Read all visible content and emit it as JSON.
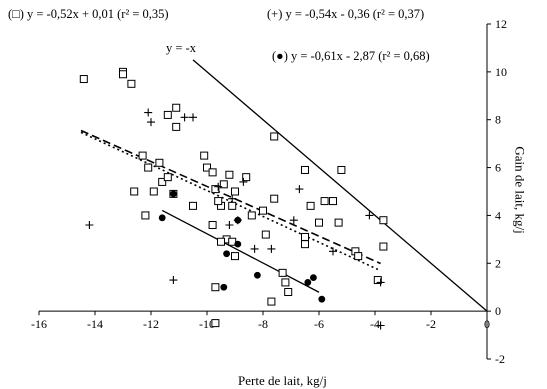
{
  "chart_data": {
    "type": "scatter",
    "xlabel": "Perte de lait, kg/j",
    "ylabel": "Gain de lait, kg/j",
    "xlim": [
      -16,
      0
    ],
    "ylim": [
      -2,
      12
    ],
    "x_ticks": [
      "-16",
      "-14",
      "-12",
      "-10",
      "-8",
      "-6",
      "-4",
      "-2",
      "0"
    ],
    "y_ticks": [
      "-2",
      "0",
      "2",
      "4",
      "6",
      "8",
      "10",
      "12"
    ],
    "y_axis_position": "right",
    "grid": false,
    "annotations": {
      "squares_eq": "(□) y = -0,52x + 0,01 (r² = 0,35)",
      "plus_eq": "(+) y = -0,54x - 0,36 (r² = 0,37)",
      "dots_eq": "(●) y = -0,61x - 2,87 (r² = 0,68)",
      "identity": "y = -x"
    },
    "series": [
      {
        "marker": "open-square",
        "points": [
          [
            -14.4,
            9.7
          ],
          [
            -13,
            10
          ],
          [
            -13,
            9.9
          ],
          [
            -12.7,
            9.5
          ],
          [
            -11.4,
            8.2
          ],
          [
            -11.1,
            8.5
          ],
          [
            -11.1,
            7.7
          ],
          [
            -12.6,
            5.0
          ],
          [
            -12.3,
            6.5
          ],
          [
            -12.1,
            6.0
          ],
          [
            -12.2,
            4.0
          ],
          [
            -11.9,
            5.0
          ],
          [
            -11.7,
            6.2
          ],
          [
            -11.6,
            5.4
          ],
          [
            -11.4,
            5.6
          ],
          [
            -11.2,
            4.9
          ],
          [
            -10.5,
            4.4
          ],
          [
            -10.1,
            6.5
          ],
          [
            -10.0,
            6.0
          ],
          [
            -9.8,
            5.8
          ],
          [
            -9.7,
            5.1
          ],
          [
            -9.5,
            4.4
          ],
          [
            -9.6,
            4.6
          ],
          [
            -9.4,
            5.3
          ],
          [
            -9.2,
            5.7
          ],
          [
            -9.1,
            4.4
          ],
          [
            -9.0,
            5.0
          ],
          [
            -8.6,
            5.6
          ],
          [
            -8.4,
            4.0
          ],
          [
            -8.0,
            4.2
          ],
          [
            -7.9,
            3.2
          ],
          [
            -7.6,
            4.7
          ],
          [
            -7.6,
            7.3
          ],
          [
            -6.5,
            5.9
          ],
          [
            -6.3,
            4.4
          ],
          [
            -6.0,
            3.7
          ],
          [
            -5.8,
            4.6
          ],
          [
            -5.5,
            4.6
          ],
          [
            -5.3,
            3.7
          ],
          [
            -5.2,
            5.9
          ],
          [
            -9.3,
            3.0
          ],
          [
            -9.5,
            2.9
          ],
          [
            -9.1,
            2.9
          ],
          [
            -9.0,
            2.3
          ],
          [
            -9.8,
            3.6
          ],
          [
            -7.3,
            1.6
          ],
          [
            -7.2,
            1.2
          ],
          [
            -7.1,
            0.8
          ],
          [
            -7.7,
            0.4
          ],
          [
            -6.5,
            3.1
          ],
          [
            -6.5,
            2.8
          ],
          [
            -4.7,
            2.5
          ],
          [
            -4.6,
            2.3
          ],
          [
            -3.9,
            1.3
          ],
          [
            -3.7,
            3.8
          ],
          [
            -3.7,
            2.7
          ],
          [
            -9.7,
            1.0
          ],
          [
            -9.7,
            -0.5
          ]
        ]
      },
      {
        "marker": "plus",
        "points": [
          [
            -14.2,
            3.6
          ],
          [
            -12.1,
            8.3
          ],
          [
            -12.0,
            7.9
          ],
          [
            -10.8,
            8.1
          ],
          [
            -10.5,
            8.1
          ],
          [
            -11.2,
            1.3
          ],
          [
            -9.6,
            5.2
          ],
          [
            -9.2,
            3.6
          ],
          [
            -9.1,
            4.7
          ],
          [
            -8.7,
            5.4
          ],
          [
            -8.9,
            3.8
          ],
          [
            -8.3,
            2.6
          ],
          [
            -7.7,
            2.6
          ],
          [
            -6.9,
            3.8
          ],
          [
            -6.7,
            5.1
          ],
          [
            -5.5,
            2.5
          ],
          [
            -4.2,
            4.0
          ],
          [
            -3.8,
            1.2
          ],
          [
            -3.8,
            -0.6
          ]
        ]
      },
      {
        "marker": "filled-circle",
        "points": [
          [
            -11.6,
            3.9
          ],
          [
            -11.2,
            4.9
          ],
          [
            -9.3,
            2.4
          ],
          [
            -8.9,
            2.8
          ],
          [
            -8.9,
            3.8
          ],
          [
            -8.2,
            1.5
          ],
          [
            -9.4,
            1.0
          ],
          [
            -6.4,
            1.2
          ],
          [
            -6.2,
            1.4
          ],
          [
            -5.9,
            0.5
          ]
        ]
      }
    ],
    "lines": [
      {
        "style": "dashed",
        "x": [
          -14.5,
          -3.8
        ],
        "y": [
          7.55,
          1.99
        ]
      },
      {
        "style": "dotted",
        "x": [
          -14.5,
          -3.8
        ],
        "y": [
          7.47,
          1.69
        ]
      },
      {
        "style": "solid",
        "x": [
          -11.6,
          -6.0
        ],
        "y": [
          4.21,
          0.79
        ]
      },
      {
        "style": "solid",
        "x": [
          -10.5,
          0
        ],
        "y": [
          10.5,
          0
        ]
      }
    ]
  }
}
